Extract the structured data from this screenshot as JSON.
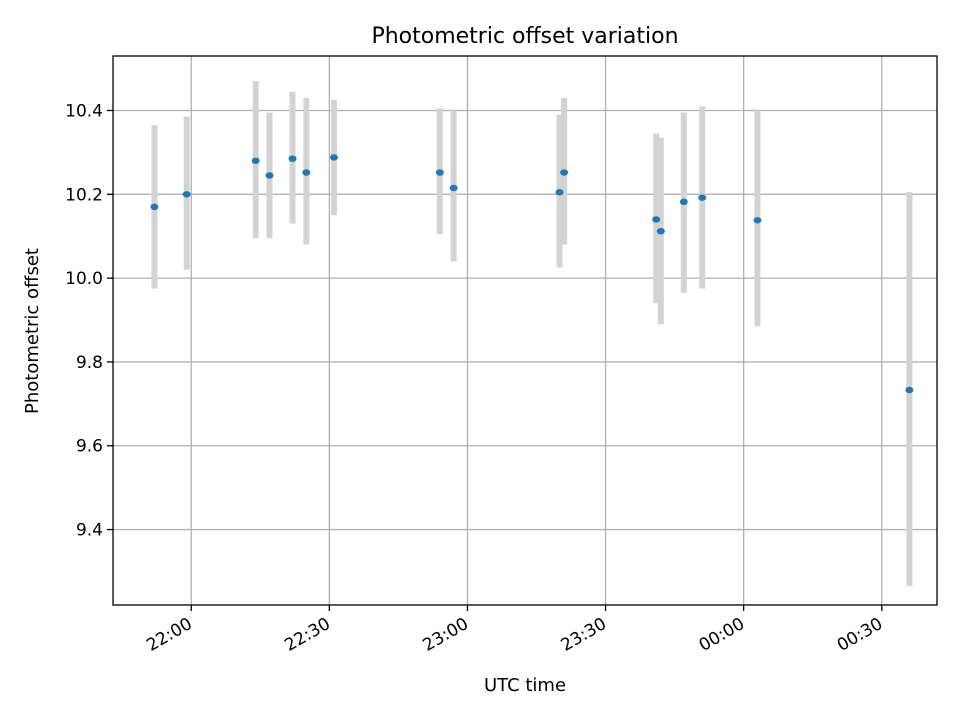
{
  "chart_data": {
    "type": "scatter",
    "title": "Photometric offset variation",
    "xlabel": "UTC time",
    "ylabel": "Photometric offset",
    "x_tick_labels": [
      "22:00",
      "22:30",
      "23:00",
      "23:30",
      "00:00",
      "00:30"
    ],
    "y_tick_labels": [
      "9.4",
      "9.6",
      "9.8",
      "10.0",
      "10.2",
      "10.4"
    ],
    "y_ticks": [
      9.4,
      9.6,
      9.8,
      10.0,
      10.2,
      10.4
    ],
    "ylim": [
      9.22,
      10.53
    ],
    "xlim": [
      "21:43",
      "00:42"
    ],
    "grid": true,
    "point_color": "#1f77b4",
    "errorbar_color": "#d3d3d3",
    "points": [
      {
        "time": "21:52",
        "y": 10.17,
        "ylow": 9.975,
        "yhigh": 10.365
      },
      {
        "time": "21:59",
        "y": 10.2,
        "ylow": 10.02,
        "yhigh": 10.385
      },
      {
        "time": "22:14",
        "y": 10.28,
        "ylow": 10.095,
        "yhigh": 10.47
      },
      {
        "time": "22:17",
        "y": 10.245,
        "ylow": 10.095,
        "yhigh": 10.395
      },
      {
        "time": "22:22",
        "y": 10.285,
        "ylow": 10.13,
        "yhigh": 10.445
      },
      {
        "time": "22:25",
        "y": 10.252,
        "ylow": 10.08,
        "yhigh": 10.43
      },
      {
        "time": "22:31",
        "y": 10.288,
        "ylow": 10.15,
        "yhigh": 10.425
      },
      {
        "time": "22:54",
        "y": 10.252,
        "ylow": 10.105,
        "yhigh": 10.405
      },
      {
        "time": "22:57",
        "y": 10.215,
        "ylow": 10.04,
        "yhigh": 10.4
      },
      {
        "time": "23:20",
        "y": 10.205,
        "ylow": 10.025,
        "yhigh": 10.39
      },
      {
        "time": "23:21",
        "y": 10.252,
        "ylow": 10.08,
        "yhigh": 10.43
      },
      {
        "time": "23:41",
        "y": 10.14,
        "ylow": 9.94,
        "yhigh": 10.345
      },
      {
        "time": "23:42",
        "y": 10.112,
        "ylow": 9.89,
        "yhigh": 10.335
      },
      {
        "time": "23:47",
        "y": 10.182,
        "ylow": 9.965,
        "yhigh": 10.395
      },
      {
        "time": "23:51",
        "y": 10.192,
        "ylow": 9.975,
        "yhigh": 10.41
      },
      {
        "time": "00:03",
        "y": 10.138,
        "ylow": 9.885,
        "yhigh": 10.4
      },
      {
        "time": "00:36",
        "y": 9.733,
        "ylow": 9.265,
        "yhigh": 10.205
      }
    ]
  }
}
